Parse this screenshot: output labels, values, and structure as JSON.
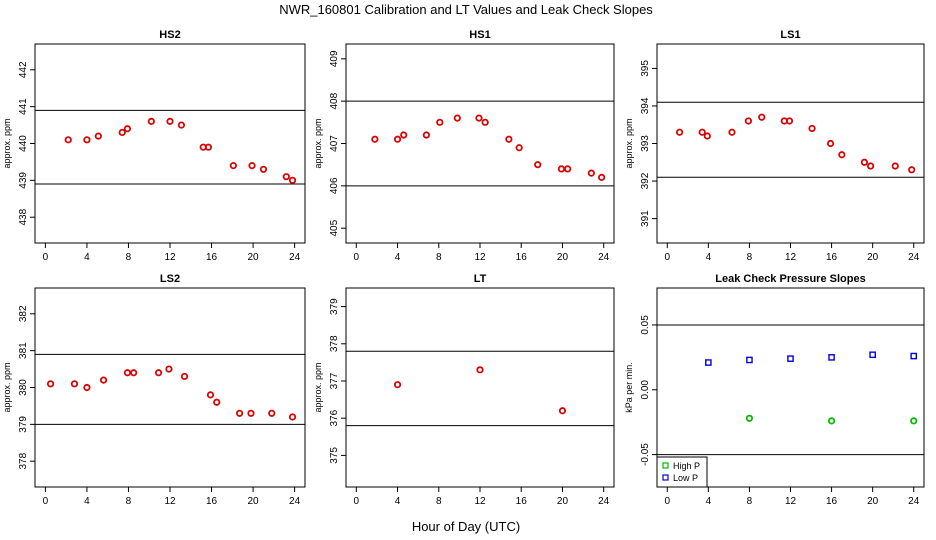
{
  "figure": {
    "title": "NWR_160801  Calibration and LT Values and Leak Check Slopes",
    "xlabel": "Hour of Day (UTC)"
  },
  "chart_data": [
    {
      "type": "scatter",
      "title": "HS2",
      "ylabel": "approx. ppm",
      "xlim": [
        -1,
        25
      ],
      "ylim": [
        437.3,
        442.7
      ],
      "xticks": [
        "0",
        "4",
        "8",
        "12",
        "16",
        "20",
        "24"
      ],
      "yticks": [
        "438",
        "439",
        "440",
        "441",
        "442"
      ],
      "reference_lines": [
        440.9,
        438.9
      ],
      "series": [
        {
          "color": "#dd0000",
          "marker": "circle",
          "points": [
            [
              2.2,
              440.1
            ],
            [
              4.0,
              440.1
            ],
            [
              5.1,
              440.2
            ],
            [
              7.4,
              440.3
            ],
            [
              7.9,
              440.4
            ],
            [
              10.2,
              440.6
            ],
            [
              12.0,
              440.6
            ],
            [
              13.1,
              440.5
            ],
            [
              15.2,
              439.9
            ],
            [
              15.7,
              439.9
            ],
            [
              18.1,
              439.4
            ],
            [
              19.9,
              439.4
            ],
            [
              21.0,
              439.3
            ],
            [
              23.2,
              439.1
            ],
            [
              23.8,
              439.0
            ]
          ]
        }
      ]
    },
    {
      "type": "scatter",
      "title": "HS1",
      "ylabel": "approx. ppm",
      "xlim": [
        -1,
        25
      ],
      "ylim": [
        404.65,
        409.35
      ],
      "xticks": [
        "0",
        "4",
        "8",
        "12",
        "16",
        "20",
        "24"
      ],
      "yticks": [
        "405",
        "406",
        "407",
        "408",
        "409"
      ],
      "reference_lines": [
        408.0,
        406.0
      ],
      "series": [
        {
          "color": "#dd0000",
          "marker": "circle",
          "points": [
            [
              1.8,
              407.1
            ],
            [
              4.0,
              407.1
            ],
            [
              4.6,
              407.2
            ],
            [
              6.8,
              407.2
            ],
            [
              8.1,
              407.5
            ],
            [
              9.8,
              407.6
            ],
            [
              11.9,
              407.6
            ],
            [
              12.5,
              407.5
            ],
            [
              14.8,
              407.1
            ],
            [
              15.8,
              406.9
            ],
            [
              17.6,
              406.5
            ],
            [
              19.9,
              406.4
            ],
            [
              20.5,
              406.4
            ],
            [
              22.8,
              406.3
            ],
            [
              23.8,
              406.2
            ]
          ]
        }
      ]
    },
    {
      "type": "scatter",
      "title": "LS1",
      "ylabel": "approx. ppm",
      "xlim": [
        -1,
        25
      ],
      "ylim": [
        390.35,
        395.65
      ],
      "xticks": [
        "0",
        "4",
        "8",
        "12",
        "16",
        "20",
        "24"
      ],
      "yticks": [
        "391",
        "392",
        "393",
        "394",
        "395"
      ],
      "reference_lines": [
        394.1,
        392.1
      ],
      "series": [
        {
          "color": "#dd0000",
          "marker": "circle",
          "points": [
            [
              1.2,
              393.3
            ],
            [
              3.4,
              393.3
            ],
            [
              3.9,
              393.2
            ],
            [
              6.3,
              393.3
            ],
            [
              7.9,
              393.6
            ],
            [
              9.2,
              393.7
            ],
            [
              11.4,
              393.6
            ],
            [
              11.9,
              393.6
            ],
            [
              14.1,
              393.4
            ],
            [
              15.9,
              393.0
            ],
            [
              17.0,
              392.7
            ],
            [
              19.2,
              392.5
            ],
            [
              19.8,
              392.4
            ],
            [
              22.2,
              392.4
            ],
            [
              23.8,
              392.3
            ]
          ]
        }
      ]
    },
    {
      "type": "scatter",
      "title": "LS2",
      "ylabel": "approx. ppm",
      "xlim": [
        -1,
        25
      ],
      "ylim": [
        377.3,
        382.7
      ],
      "xticks": [
        "0",
        "4",
        "8",
        "12",
        "16",
        "20",
        "24"
      ],
      "yticks": [
        "378",
        "379",
        "380",
        "381",
        "382"
      ],
      "reference_lines": [
        380.9,
        379.0
      ],
      "series": [
        {
          "color": "#dd0000",
          "marker": "circle",
          "points": [
            [
              0.5,
              380.1
            ],
            [
              2.8,
              380.1
            ],
            [
              4.0,
              380.0
            ],
            [
              5.6,
              380.2
            ],
            [
              7.9,
              380.4
            ],
            [
              8.5,
              380.4
            ],
            [
              10.9,
              380.4
            ],
            [
              11.9,
              380.5
            ],
            [
              13.4,
              380.3
            ],
            [
              15.9,
              379.8
            ],
            [
              16.5,
              379.6
            ],
            [
              18.7,
              379.3
            ],
            [
              19.8,
              379.3
            ],
            [
              21.8,
              379.3
            ],
            [
              23.8,
              379.2
            ]
          ]
        }
      ]
    },
    {
      "type": "scatter",
      "title": "LT",
      "ylabel": "approx. ppm",
      "xlim": [
        -1,
        25
      ],
      "ylim": [
        374.15,
        379.5
      ],
      "xticks": [
        "0",
        "4",
        "8",
        "12",
        "16",
        "20",
        "24"
      ],
      "yticks": [
        "375",
        "376",
        "377",
        "378",
        "379"
      ],
      "reference_lines": [
        377.8,
        375.8
      ],
      "series": [
        {
          "color": "#dd0000",
          "marker": "circle",
          "points": [
            [
              4.0,
              376.9
            ],
            [
              12.0,
              377.3
            ],
            [
              20.0,
              376.2
            ]
          ]
        }
      ]
    },
    {
      "type": "scatter",
      "title": "Leak Check Pressure Slopes",
      "ylabel": "kPa per min.",
      "xlim": [
        -1,
        25
      ],
      "ylim": [
        -0.075,
        0.0785
      ],
      "xticks": [
        "0",
        "4",
        "8",
        "12",
        "16",
        "20",
        "24"
      ],
      "yticks": [
        "-0.05",
        "0.00",
        "0.05"
      ],
      "reference_lines": [
        0.05,
        -0.05
      ],
      "series": [
        {
          "name": "High P",
          "color": "#00bb00",
          "marker": "circle",
          "points": [
            [
              8.0,
              -0.022
            ],
            [
              16.0,
              -0.024
            ],
            [
              24.0,
              -0.024
            ]
          ]
        },
        {
          "name": "Low P",
          "color": "#0000dd",
          "marker": "square",
          "points": [
            [
              4.0,
              0.021
            ],
            [
              8.0,
              0.023
            ],
            [
              12.0,
              0.024
            ],
            [
              16.0,
              0.025
            ],
            [
              20.0,
              0.027
            ],
            [
              24.0,
              0.026
            ]
          ]
        }
      ]
    }
  ]
}
